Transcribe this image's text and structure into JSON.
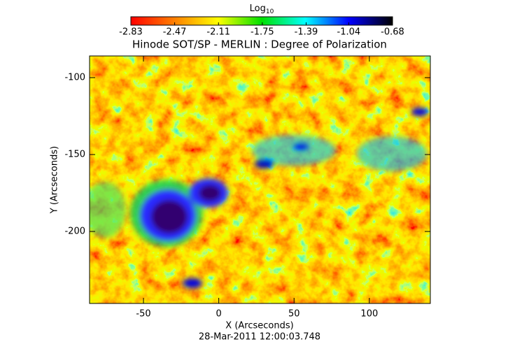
{
  "chart_data": {
    "type": "image",
    "title": "Hinode SOT/SP - MERLIN : Degree of Polarization",
    "xlabel": "X (Arcseconds)",
    "ylabel": "Y (Arcseconds)",
    "footer": "28-Mar-2011 12:00:03.748",
    "xlim": [
      -85.8,
      140.5
    ],
    "xticks": [
      -50,
      0,
      50,
      100
    ],
    "ylim": [
      -246.8,
      -85.9
    ],
    "yticks": [
      -100,
      -150,
      -200
    ],
    "colorbar_label": "Log",
    "colorbar_label_sub": "10",
    "clim": [
      -2.83,
      -0.68
    ],
    "cticks": [
      -2.83,
      -2.47,
      -2.11,
      -1.75,
      -1.39,
      -1.04,
      -0.68
    ],
    "colormap": [
      "#ff0000",
      "#ff8000",
      "#ffff00",
      "#00e000",
      "#00ffff",
      "#0000ff",
      "#000000"
    ]
  }
}
